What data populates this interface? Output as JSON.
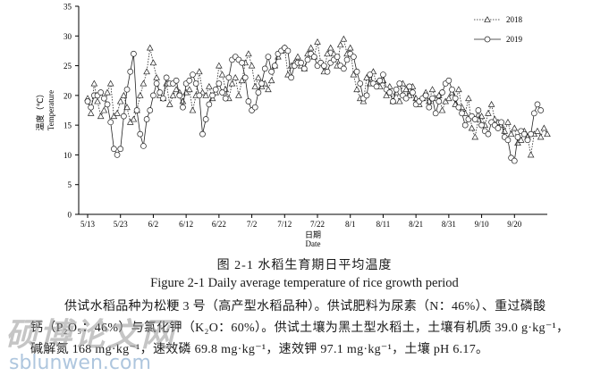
{
  "chart_data": {
    "type": "line",
    "xlabel_cn": "日期",
    "xlabel_en": "Date",
    "ylabel_cn": "温度（℃）",
    "ylabel_en": "Temperature",
    "ylim": [
      0,
      35
    ],
    "yticks": [
      0,
      5,
      10,
      15,
      20,
      25,
      30,
      35
    ],
    "x_ticks": [
      "5/13",
      "5/23",
      "6/2",
      "6/12",
      "6/22",
      "7/2",
      "7/12",
      "7/22",
      "8/1",
      "8/11",
      "8/21",
      "8/31",
      "9/10",
      "9/20"
    ],
    "legend_position": "top-right",
    "series": [
      {
        "name": "2018",
        "style": "dotted-triangle",
        "values": [
          19.5,
          17.0,
          22.0,
          19.0,
          16.5,
          17.5,
          20.5,
          22.0,
          16.5,
          17.0,
          19.0,
          20.0,
          18.0,
          15.5,
          16.0,
          17.5,
          20.0,
          22.0,
          24.0,
          28.0,
          25.5,
          23.0,
          20.0,
          19.5,
          22.0,
          18.5,
          20.0,
          21.0,
          20.5,
          19.0,
          20.5,
          21.0,
          17.5,
          20.0,
          24.0,
          20.5,
          20.0,
          21.5,
          19.5,
          20.5,
          25.0,
          23.5,
          21.0,
          19.5,
          22.0,
          23.0,
          20.0,
          22.5,
          25.5,
          27.0,
          25.0,
          21.5,
          23.0,
          21.5,
          22.0,
          21.0,
          22.5,
          25.0,
          26.5,
          27.5,
          28.0,
          23.5,
          25.0,
          25.5,
          26.5,
          25.0,
          24.5,
          27.0,
          28.0,
          26.5,
          29.0,
          25.5,
          24.0,
          27.0,
          28.0,
          27.0,
          25.0,
          28.5,
          29.5,
          27.0,
          28.0,
          23.5,
          21.0,
          19.5,
          19.0,
          23.0,
          22.0,
          24.0,
          22.0,
          21.5,
          22.5,
          20.0,
          21.5,
          19.0,
          20.5,
          19.0,
          22.0,
          21.0,
          20.0,
          21.5,
          19.5,
          18.5,
          19.5,
          20.5,
          19.0,
          21.0,
          19.5,
          20.0,
          17.5,
          19.0,
          19.5,
          20.5,
          18.5,
          21.0,
          18.0,
          17.0,
          19.5,
          14.5,
          13.0,
          16.0,
          16.5,
          15.0,
          17.0,
          18.5,
          16.0,
          15.5,
          15.0,
          14.0,
          15.5,
          13.5,
          14.5,
          12.0,
          12.5,
          14.0,
          13.0,
          10.0,
          13.5,
          14.0,
          13.0,
          14.5,
          13.5
        ],
        "color": "#222222"
      },
      {
        "name": "2019",
        "style": "solid-circle",
        "values": [
          19.0,
          18.0,
          20.0,
          20.0,
          20.5,
          19.5,
          18.5,
          15.5,
          11.0,
          10.0,
          11.0,
          16.5,
          21.0,
          24.0,
          27.0,
          17.5,
          13.5,
          11.5,
          16.0,
          17.5,
          20.0,
          22.0,
          20.5,
          19.5,
          23.0,
          22.0,
          22.0,
          22.5,
          20.0,
          18.0,
          22.0,
          22.5,
          23.5,
          22.0,
          20.0,
          13.5,
          16.0,
          18.5,
          20.0,
          21.0,
          22.0,
          20.5,
          19.5,
          23.0,
          26.0,
          26.5,
          26.0,
          25.5,
          23.0,
          19.0,
          17.5,
          18.0,
          20.5,
          22.0,
          24.5,
          26.5,
          24.0,
          25.0,
          27.0,
          27.5,
          28.0,
          27.5,
          23.0,
          25.0,
          25.5,
          25.5,
          24.5,
          26.0,
          27.0,
          26.5,
          25.0,
          25.5,
          25.0,
          24.0,
          25.5,
          26.0,
          26.5,
          25.0,
          24.5,
          26.0,
          27.0,
          26.5,
          24.0,
          22.0,
          19.5,
          20.0,
          23.5,
          22.0,
          21.5,
          22.5,
          23.5,
          21.0,
          20.5,
          19.0,
          21.0,
          22.0,
          20.0,
          19.5,
          21.5,
          20.5,
          18.5,
          19.0,
          19.5,
          20.0,
          18.0,
          19.5,
          17.0,
          19.0,
          20.5,
          22.0,
          22.5,
          21.0,
          19.5,
          18.0,
          17.0,
          15.0,
          16.0,
          16.5,
          16.0,
          17.5,
          15.0,
          14.0,
          13.5,
          15.5,
          15.0,
          14.5,
          15.5,
          13.0,
          12.5,
          9.5,
          9.0,
          13.0,
          14.0,
          13.5,
          12.5,
          13.5,
          17.0,
          18.5,
          17.5
        ],
        "color": "#222222"
      }
    ]
  },
  "caption": {
    "cn": "图 2-1  水稻生育期日平均温度",
    "en": "Figure 2-1 Daily average temperature of rice growth period"
  },
  "body_text": {
    "line1": "供试水稻品种为松粳 3 号（高产型水稻品种）。供试肥料为尿素（N：46%）、重过磷酸",
    "line2": "钙（P₂O₅：46%）与氯化钾（K₂O：60%）。供试土壤为黑土型水稻土，土壤有机质 39.0 g·kg⁻¹，",
    "line3": "碱解氮 168 mg·kg⁻¹，速效磷 69.8 mg·kg⁻¹，速效钾 97.1 mg·kg⁻¹，土壤 pH 6.17。"
  },
  "watermark": {
    "cn": "硕博论文网",
    "url": "sblunwen.com"
  }
}
